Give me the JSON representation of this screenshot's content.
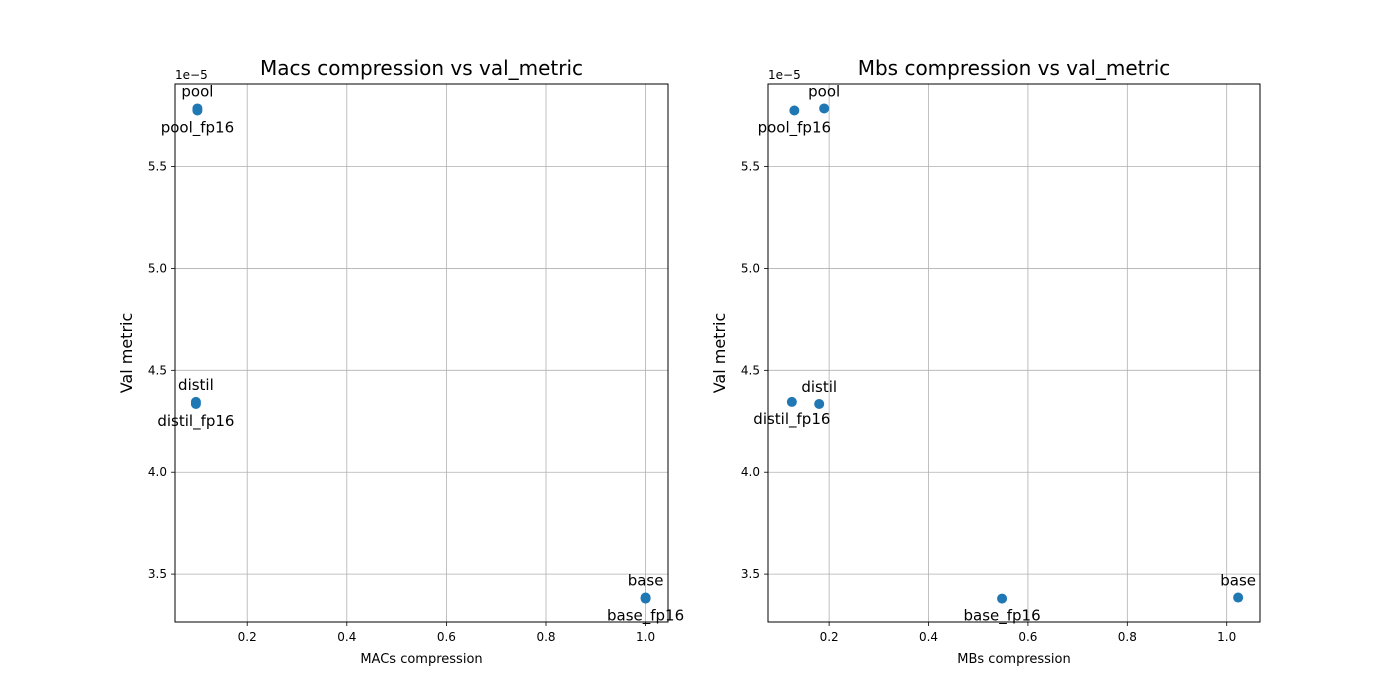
{
  "chart_data": [
    {
      "type": "scatter",
      "title": "Macs compression vs val_metric",
      "xlabel": "MACs compression",
      "ylabel": "Val metric",
      "y_offset_label": "1e−5",
      "xlim": [
        0.055,
        1.045
      ],
      "ylim": [
        3.265,
        5.905
      ],
      "xticks": [
        0.2,
        0.4,
        0.6,
        0.8,
        1.0
      ],
      "xtick_labels": [
        "0.2",
        "0.4",
        "0.6",
        "0.8",
        "1.0"
      ],
      "yticks": [
        3.5,
        4.0,
        4.5,
        5.0,
        5.5
      ],
      "ytick_labels": [
        "3.5",
        "4.0",
        "4.5",
        "5.0",
        "5.5"
      ],
      "grid": true,
      "marker_color": "#1f77b4",
      "points": [
        {
          "label": "pool",
          "x": 0.1,
          "y": 5.785,
          "label_pos": "above"
        },
        {
          "label": "pool_fp16",
          "x": 0.1,
          "y": 5.775,
          "label_pos": "below"
        },
        {
          "label": "distil",
          "x": 0.097,
          "y": 4.345,
          "label_pos": "above"
        },
        {
          "label": "distil_fp16",
          "x": 0.097,
          "y": 4.335,
          "label_pos": "below"
        },
        {
          "label": "base",
          "x": 1.0,
          "y": 3.385,
          "label_pos": "above"
        },
        {
          "label": "base_fp16",
          "x": 1.0,
          "y": 3.38,
          "label_pos": "below"
        }
      ]
    },
    {
      "type": "scatter",
      "title": "Mbs compression vs val_metric",
      "xlabel": "MBs compression",
      "ylabel": "Val metric",
      "y_offset_label": "1e−5",
      "xlim": [
        0.077,
        1.067
      ],
      "ylim": [
        3.265,
        5.905
      ],
      "xticks": [
        0.2,
        0.4,
        0.6,
        0.8,
        1.0
      ],
      "xtick_labels": [
        "0.2",
        "0.4",
        "0.6",
        "0.8",
        "1.0"
      ],
      "yticks": [
        3.5,
        4.0,
        4.5,
        5.0,
        5.5
      ],
      "ytick_labels": [
        "3.5",
        "4.0",
        "4.5",
        "5.0",
        "5.5"
      ],
      "grid": true,
      "marker_color": "#1f77b4",
      "points": [
        {
          "label": "pool",
          "x": 0.19,
          "y": 5.785,
          "label_pos": "above"
        },
        {
          "label": "pool_fp16",
          "x": 0.13,
          "y": 5.775,
          "label_pos": "below"
        },
        {
          "label": "distil",
          "x": 0.18,
          "y": 4.335,
          "label_pos": "above"
        },
        {
          "label": "distil_fp16",
          "x": 0.125,
          "y": 4.345,
          "label_pos": "below"
        },
        {
          "label": "base",
          "x": 1.023,
          "y": 3.385,
          "label_pos": "above"
        },
        {
          "label": "base_fp16",
          "x": 0.548,
          "y": 3.38,
          "label_pos": "below"
        }
      ]
    }
  ]
}
